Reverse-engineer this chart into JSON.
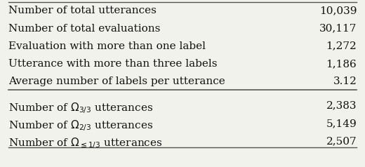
{
  "rows_top": [
    [
      "Number of total utterances",
      "10,039"
    ],
    [
      "Number of total evaluations",
      "30,117"
    ],
    [
      "Evaluation with more than one label",
      "1,272"
    ],
    [
      "Utterance with more than three labels",
      "1,186"
    ],
    [
      "Average number of labels per utterance",
      "3.12"
    ]
  ],
  "rows_bottom": [
    [
      "Number of $\\Omega_{3/3}$ utterances",
      "2,383"
    ],
    [
      "Number of $\\Omega_{2/3}$ utterances",
      "5,149"
    ],
    [
      "Number of $\\Omega_{\\leq 1/3}$ utterances",
      "2,507"
    ]
  ],
  "bg_color": "#f2f2ec",
  "text_color": "#111111",
  "line_color": "#555555",
  "font_size": 11.0
}
